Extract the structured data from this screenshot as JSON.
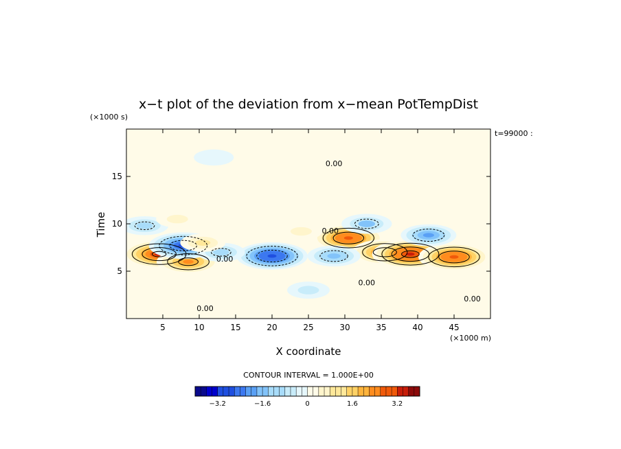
{
  "chart_data": {
    "type": "heatmap",
    "title": "x−t plot of the deviation from x−mean PotTempDist",
    "xlabel": "X coordinate",
    "ylabel": "Time",
    "x_unit": "(×1000 m)",
    "y_unit": "(×1000 s)",
    "time_stamp": "t=99000 :",
    "contour_interval": "CONTOUR INTERVAL = 1.000E+00",
    "xlim": [
      0,
      50
    ],
    "ylim": [
      0,
      20
    ],
    "x_ticks": [
      5,
      10,
      15,
      20,
      25,
      30,
      35,
      40,
      45
    ],
    "x_tick_labels": [
      "5",
      "10",
      "15",
      "20",
      "25",
      "30",
      "35",
      "40",
      "45"
    ],
    "y_ticks": [
      5,
      10,
      15
    ],
    "y_tick_labels": [
      "5",
      "10",
      "15"
    ],
    "contour_labels": [
      "0.00",
      "0.00",
      "0.00",
      "0.00",
      "0.00",
      "0.00"
    ],
    "colorbar": {
      "min": -4.0,
      "max": 4.0,
      "step": 0.2,
      "tick_values": [
        -3.2,
        -1.6,
        0,
        1.6,
        3.2
      ],
      "tick_labels": [
        "−3.2",
        "−1.6",
        "0",
        "1.6",
        "3.2"
      ]
    },
    "features": [
      {
        "x": 4.5,
        "t": 6.8,
        "value": 3.2
      },
      {
        "x": 8.5,
        "t": 6.0,
        "value": 2.4
      },
      {
        "x": 7.8,
        "t": 7.7,
        "value": -2.8
      },
      {
        "x": 20.0,
        "t": 6.6,
        "value": -3.0
      },
      {
        "x": 30.5,
        "t": 8.5,
        "value": 3.0
      },
      {
        "x": 35.5,
        "t": 7.0,
        "value": 2.6
      },
      {
        "x": 39.0,
        "t": 6.8,
        "value": 3.4
      },
      {
        "x": 45.0,
        "t": 6.5,
        "value": 3.0
      },
      {
        "x": 41.5,
        "t": 8.8,
        "value": -1.8
      },
      {
        "x": 33.0,
        "t": 10.0,
        "value": -1.4
      },
      {
        "x": 2.5,
        "t": 9.8,
        "value": -1.2
      },
      {
        "x": 7.0,
        "t": 10.5,
        "value": 0.8
      },
      {
        "x": 28.5,
        "t": 6.6,
        "value": -1.6
      },
      {
        "x": 13.0,
        "t": 7.0,
        "value": -1.2
      },
      {
        "x": 10.5,
        "t": 8.0,
        "value": 1.0
      },
      {
        "x": 24.0,
        "t": 9.2,
        "value": 0.8
      },
      {
        "x": 12.0,
        "t": 17.0,
        "value": -0.6
      },
      {
        "x": 38.0,
        "t": 16.5,
        "value": 0.1
      },
      {
        "x": 25.0,
        "t": 3.0,
        "value": -0.8
      },
      {
        "x": 5.0,
        "t": 3.0,
        "value": 0.5
      }
    ]
  },
  "colors": {
    "ramp": [
      "#0a0a8c",
      "#0000cd",
      "#1f4fe0",
      "#3c78f0",
      "#5aa0f5",
      "#82c3fa",
      "#a8dcfa",
      "#c8ecfa",
      "#e6f7fc",
      "#fffbe8",
      "#fff5cc",
      "#ffe89a",
      "#ffd266",
      "#ffb43c",
      "#ff8c1e",
      "#f05a0a",
      "#c81e0a",
      "#8c0a0a"
    ]
  }
}
